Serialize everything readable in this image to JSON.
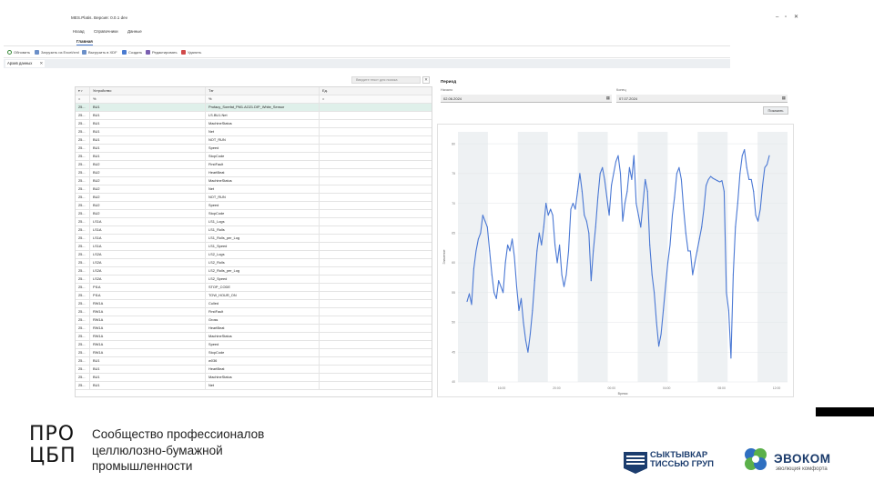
{
  "app": {
    "title": "MES.Platis. Версия: 0.0.1 dev",
    "window_controls": [
      "–",
      "▫",
      "✕"
    ]
  },
  "menu": [
    "Назад",
    "Справочники",
    "Данные"
  ],
  "ribbon": {
    "active_tab": "Главная",
    "buttons": [
      {
        "label": "Обновить",
        "icon": "refresh-icon"
      },
      {
        "label": "Загрузить из Excel/xml",
        "icon": "upload-icon"
      },
      {
        "label": "Выгрузить в XDF",
        "icon": "download-icon"
      },
      {
        "label": "Создать",
        "icon": "create-icon"
      },
      {
        "label": "Редактировать",
        "icon": "edit-icon"
      },
      {
        "label": "Удалить",
        "icon": "delete-icon"
      }
    ]
  },
  "doc_tab": {
    "label": "Архив данных",
    "close": "✕"
  },
  "grid": {
    "search_placeholder": "Введите текст для поиска",
    "search_clear": "✕",
    "headers": [
      "Устройство",
      "Тэг",
      "Ед."
    ],
    "filter_symbols": [
      "=",
      "%",
      "%",
      "="
    ],
    "rows": [
      {
        "id": "25...",
        "device": "BU1",
        "tag": "Profacy_Sorefat_PM1.AO21.DIP_White_Sensor",
        "unit": ""
      },
      {
        "id": "25...",
        "device": "BU1",
        "tag": "LS.BU1.Net",
        "unit": ""
      },
      {
        "id": "25...",
        "device": "BU1",
        "tag": "MachineStatus",
        "unit": ""
      },
      {
        "id": "25...",
        "device": "BU1",
        "tag": "Net",
        "unit": ""
      },
      {
        "id": "25...",
        "device": "BU1",
        "tag": "NOT_RUN",
        "unit": ""
      },
      {
        "id": "25...",
        "device": "BU1",
        "tag": "Speed",
        "unit": ""
      },
      {
        "id": "25...",
        "device": "BU1",
        "tag": "StopCode",
        "unit": ""
      },
      {
        "id": "25...",
        "device": "BU2",
        "tag": "FirstFault",
        "unit": ""
      },
      {
        "id": "25...",
        "device": "BU2",
        "tag": "HeartBeat",
        "unit": ""
      },
      {
        "id": "25...",
        "device": "BU2",
        "tag": "MachineStatus",
        "unit": ""
      },
      {
        "id": "25...",
        "device": "BU2",
        "tag": "Net",
        "unit": ""
      },
      {
        "id": "25...",
        "device": "BU2",
        "tag": "NOT_RUN",
        "unit": ""
      },
      {
        "id": "25...",
        "device": "BU2",
        "tag": "Speed",
        "unit": ""
      },
      {
        "id": "25...",
        "device": "BU2",
        "tag": "StopCode",
        "unit": ""
      },
      {
        "id": "25...",
        "device": "LS1A",
        "tag": "LS1_Logs",
        "unit": ""
      },
      {
        "id": "25...",
        "device": "LS1A",
        "tag": "LS1_Rolls",
        "unit": ""
      },
      {
        "id": "25...",
        "device": "LS1A",
        "tag": "LS1_Rolls_per_Log",
        "unit": ""
      },
      {
        "id": "25...",
        "device": "LS1A",
        "tag": "LS1_Speed",
        "unit": ""
      },
      {
        "id": "25...",
        "device": "LS2A",
        "tag": "LS2_Logs",
        "unit": ""
      },
      {
        "id": "25...",
        "device": "LS2A",
        "tag": "LS2_Rolls",
        "unit": ""
      },
      {
        "id": "25...",
        "device": "LS2A",
        "tag": "LS2_Rolls_per_Log",
        "unit": ""
      },
      {
        "id": "25...",
        "device": "LS2A",
        "tag": "LS2_Speed",
        "unit": ""
      },
      {
        "id": "25...",
        "device": "PI1A",
        "tag": "STOP_CODE",
        "unit": ""
      },
      {
        "id": "25...",
        "device": "PI1A",
        "tag": "TOW_HOUR_ON",
        "unit": ""
      },
      {
        "id": "25...",
        "device": "RW1A",
        "tag": "Culled",
        "unit": ""
      },
      {
        "id": "25...",
        "device": "RW1A",
        "tag": "FirstFault",
        "unit": ""
      },
      {
        "id": "25...",
        "device": "RW1A",
        "tag": "Gross",
        "unit": ""
      },
      {
        "id": "25...",
        "device": "RW1A",
        "tag": "HeartBeat",
        "unit": ""
      },
      {
        "id": "25...",
        "device": "RW1A",
        "tag": "MachineStatus",
        "unit": ""
      },
      {
        "id": "25...",
        "device": "RW1A",
        "tag": "Speed",
        "unit": ""
      },
      {
        "id": "25...",
        "device": "RW1A",
        "tag": "StopCode",
        "unit": ""
      },
      {
        "id": "25...",
        "device": "BU1",
        "tag": "w036",
        "unit": ""
      },
      {
        "id": "25...",
        "device": "BU1",
        "tag": "HeartBeat",
        "unit": ""
      },
      {
        "id": "25...",
        "device": "BU1",
        "tag": "MachineStatus",
        "unit": ""
      },
      {
        "id": "25...",
        "device": "BU1",
        "tag": "Net",
        "unit": ""
      }
    ]
  },
  "period": {
    "title": "Период",
    "start_label": "Начало",
    "start_value": "02.06.2024",
    "end_label": "Конец",
    "end_value": "07.07.2024",
    "show_button": "Показать"
  },
  "chart_data": {
    "type": "line",
    "xlabel": "Время",
    "ylabel": "Значение",
    "x_ticks": [
      "16:00",
      "20:00",
      "00:00",
      "04:00",
      "08:00",
      "12:00"
    ],
    "y_ticks": [
      "40",
      "45",
      "50",
      "55",
      "60",
      "65",
      "70",
      "75",
      "80"
    ],
    "ylim": [
      40,
      82
    ],
    "grid": true,
    "series": [
      {
        "color": "#4a78d4",
        "values": [
          53.5,
          54.8,
          53,
          59,
          62,
          64,
          65,
          68,
          67,
          66,
          62,
          58,
          55,
          54,
          57,
          56,
          55,
          60,
          63,
          62,
          64,
          61,
          56,
          52,
          54,
          50,
          47,
          45,
          48,
          52,
          57,
          62,
          65,
          63,
          66,
          70,
          68,
          69,
          68,
          63,
          60,
          63,
          58,
          56,
          58,
          62,
          69,
          70,
          69,
          72,
          75,
          72,
          68,
          67,
          65,
          57,
          62,
          66,
          71,
          75,
          76,
          74,
          71,
          68,
          73,
          75,
          77,
          78,
          75,
          67,
          70,
          72,
          76,
          74,
          78,
          70,
          68,
          66,
          70,
          74,
          72,
          63,
          58,
          55,
          50,
          46,
          48,
          52,
          56,
          60,
          63,
          68,
          71,
          75,
          76,
          74,
          69,
          65,
          62,
          62,
          58,
          60,
          62,
          64,
          66,
          69,
          73,
          74,
          74.5,
          74.2,
          74,
          73.8,
          73.6,
          73.8,
          72,
          55,
          52,
          44,
          58,
          66,
          70,
          75,
          78,
          79,
          76,
          74,
          74,
          72,
          68,
          67,
          69,
          73,
          76,
          76.5,
          78
        ]
      }
    ]
  },
  "branding": {
    "pro_line1": "ПРО",
    "pro_line2": "ЦБП",
    "pro_text": [
      "Сообщество профессионалов",
      "целлюлозно-бумажной",
      "промышленности"
    ],
    "stt_line1": "СЫКТЫВКАР",
    "stt_line2": "ТИССЬЮ ГРУП",
    "evo_name": "ЭВОКОМ",
    "evo_sub": "эволюция комфорта"
  }
}
